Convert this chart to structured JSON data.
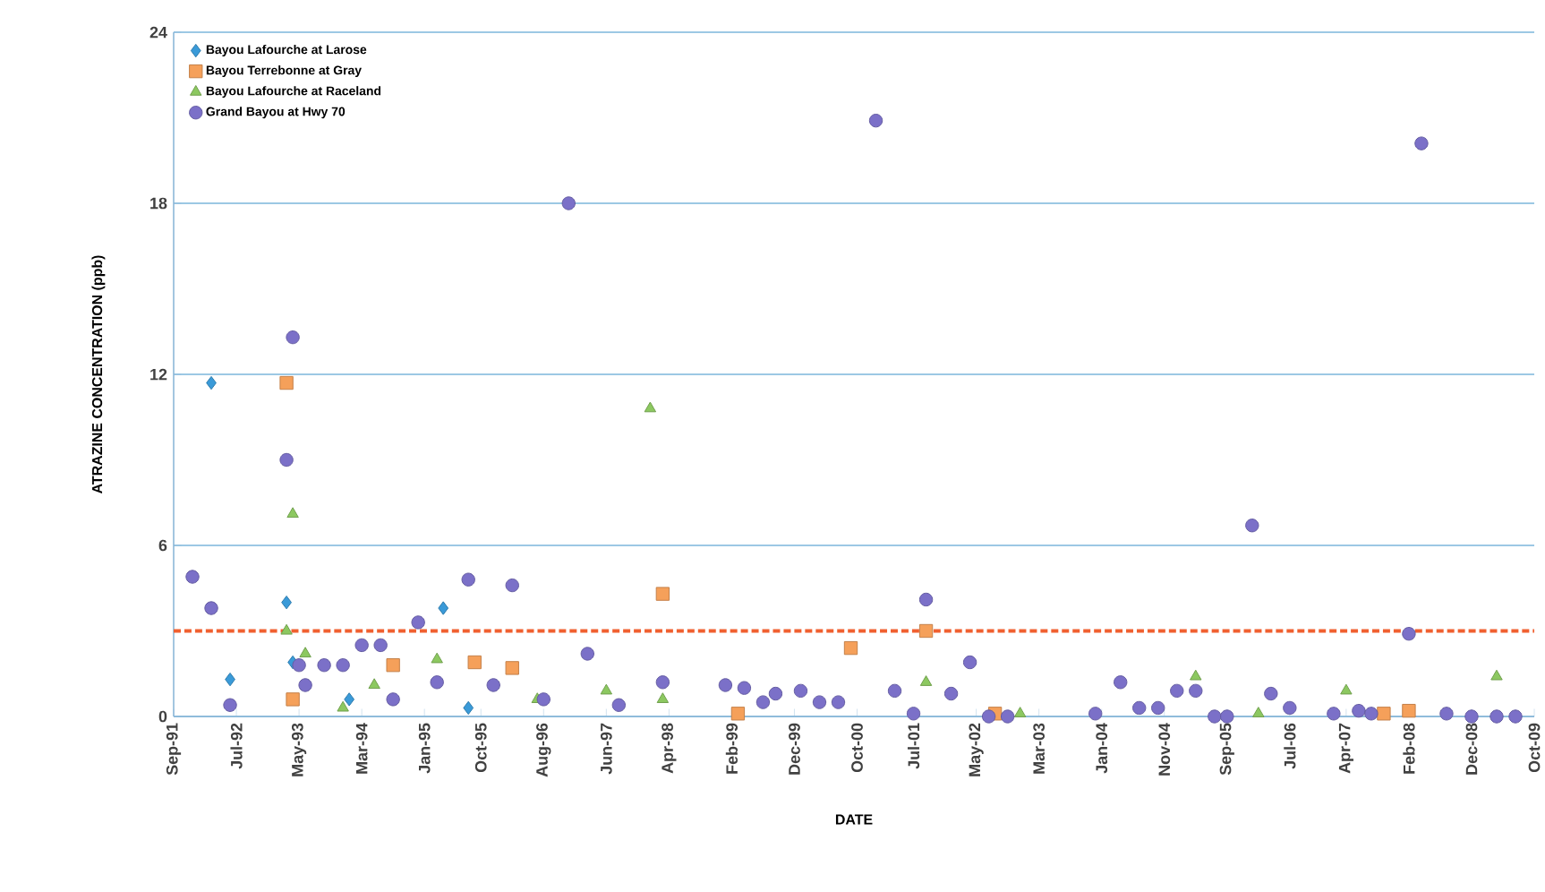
{
  "chart_data": {
    "type": "scatter",
    "xlabel": "DATE",
    "ylabel": "ATRAZINE CONCENTRATION (ppb)",
    "legend": "top left",
    "grid": "y",
    "xlim": [
      "1991-09",
      "2009-10"
    ],
    "ylim": [
      0,
      24
    ],
    "yticks": [
      0,
      6,
      12,
      18,
      24
    ],
    "xticks": [
      {
        "value": "1991-09",
        "label": "Sep-91"
      },
      {
        "value": "1992-07",
        "label": "Jul-92"
      },
      {
        "value": "1993-05",
        "label": "May-93"
      },
      {
        "value": "1994-03",
        "label": "Mar-94"
      },
      {
        "value": "1995-01",
        "label": "Jan-95"
      },
      {
        "value": "1995-10",
        "label": "Oct-95"
      },
      {
        "value": "1996-08",
        "label": "Aug-96"
      },
      {
        "value": "1997-06",
        "label": "Jun-97"
      },
      {
        "value": "1998-04",
        "label": "Apr-98"
      },
      {
        "value": "1999-02",
        "label": "Feb-99"
      },
      {
        "value": "1999-12",
        "label": "Dec-99"
      },
      {
        "value": "2000-10",
        "label": "Oct-00"
      },
      {
        "value": "2001-07",
        "label": "Jul-01"
      },
      {
        "value": "2002-05",
        "label": "May-02"
      },
      {
        "value": "2003-03",
        "label": "Mar-03"
      },
      {
        "value": "2004-01",
        "label": "Jan-04"
      },
      {
        "value": "2004-11",
        "label": "Nov-04"
      },
      {
        "value": "2005-09",
        "label": "Sep-05"
      },
      {
        "value": "2006-07",
        "label": "Jul-06"
      },
      {
        "value": "2007-04",
        "label": "Apr-07"
      },
      {
        "value": "2008-02",
        "label": "Feb-08"
      },
      {
        "value": "2008-12",
        "label": "Dec-08"
      },
      {
        "value": "2009-10",
        "label": "Oct-09"
      }
    ],
    "ref_lines": [
      {
        "axis": "y",
        "value": 3.0,
        "color": "#f06030",
        "line_style": "dashed"
      }
    ],
    "series": [
      {
        "name": "Bayou Lafourche at Larose",
        "color": "#3a9ad8",
        "marker": "diamond",
        "x": [
          "1992-03",
          "1992-06",
          "1993-03",
          "1993-04",
          "1994-01",
          "1995-04",
          "1995-08"
        ],
        "values": [
          11.7,
          1.3,
          4.0,
          1.9,
          0.6,
          3.8,
          0.3
        ]
      },
      {
        "name": "Bayou Terrebonne at Gray",
        "color": "#f5a05a",
        "marker": "square",
        "x": [
          "1993-03",
          "1993-04",
          "1994-08",
          "1995-09",
          "1996-03",
          "1998-03",
          "1999-03",
          "2000-09",
          "2001-09",
          "2002-08",
          "2007-10",
          "2008-02"
        ],
        "values": [
          11.7,
          0.6,
          1.8,
          1.9,
          1.7,
          4.3,
          0.1,
          2.4,
          3.0,
          0.1,
          0.1,
          0.2
        ]
      },
      {
        "name": "Bayou Lafourche at Raceland",
        "color": "#8cc860",
        "marker": "triangle",
        "x": [
          "1993-03",
          "1993-04",
          "1993-06",
          "1993-12",
          "1994-05",
          "1995-03",
          "1996-07",
          "1997-06",
          "1998-01",
          "1998-03",
          "2001-09",
          "2002-12",
          "2005-04",
          "2006-02",
          "2007-04",
          "2009-04"
        ],
        "values": [
          3.0,
          7.1,
          2.2,
          0.3,
          1.1,
          2.0,
          0.6,
          0.9,
          10.8,
          0.6,
          1.2,
          0.1,
          1.4,
          0.1,
          0.9,
          1.4
        ]
      },
      {
        "name": "Grand Bayou at Hwy 70",
        "color": "#7b70c8",
        "marker": "circle",
        "x": [
          "1991-12",
          "1992-03",
          "1992-06",
          "1993-03",
          "1993-04",
          "1993-05",
          "1993-06",
          "1993-09",
          "1993-12",
          "1994-03",
          "1994-06",
          "1994-08",
          "1994-12",
          "1995-03",
          "1995-08",
          "1995-12",
          "1996-03",
          "1996-08",
          "1996-12",
          "1997-03",
          "1997-08",
          "1998-03",
          "1999-01",
          "1999-04",
          "1999-07",
          "1999-09",
          "2000-01",
          "2000-04",
          "2000-07",
          "2001-01",
          "2001-04",
          "2001-07",
          "2001-09",
          "2002-01",
          "2002-04",
          "2002-07",
          "2002-10",
          "2003-12",
          "2004-04",
          "2004-07",
          "2004-10",
          "2005-01",
          "2005-04",
          "2005-07",
          "2005-09",
          "2006-01",
          "2006-04",
          "2006-07",
          "2007-02",
          "2007-06",
          "2007-08",
          "2008-02",
          "2008-04",
          "2008-08",
          "2008-12",
          "2009-04",
          "2009-07"
        ],
        "values": [
          4.9,
          3.8,
          0.4,
          9.0,
          13.3,
          1.8,
          1.1,
          1.8,
          1.8,
          2.5,
          2.5,
          0.6,
          3.3,
          1.2,
          4.8,
          1.1,
          4.6,
          0.6,
          18.0,
          2.2,
          0.4,
          1.2,
          1.1,
          1.0,
          0.5,
          0.8,
          0.9,
          0.5,
          0.5,
          20.9,
          0.9,
          0.1,
          4.1,
          0.8,
          1.9,
          0,
          0,
          0.1,
          1.2,
          0.3,
          0.3,
          0.9,
          0.9,
          0,
          0,
          6.7,
          0.8,
          0.3,
          0.1,
          0.2,
          0.1,
          2.9,
          20.1,
          0.1,
          0,
          0,
          0
        ]
      }
    ]
  }
}
